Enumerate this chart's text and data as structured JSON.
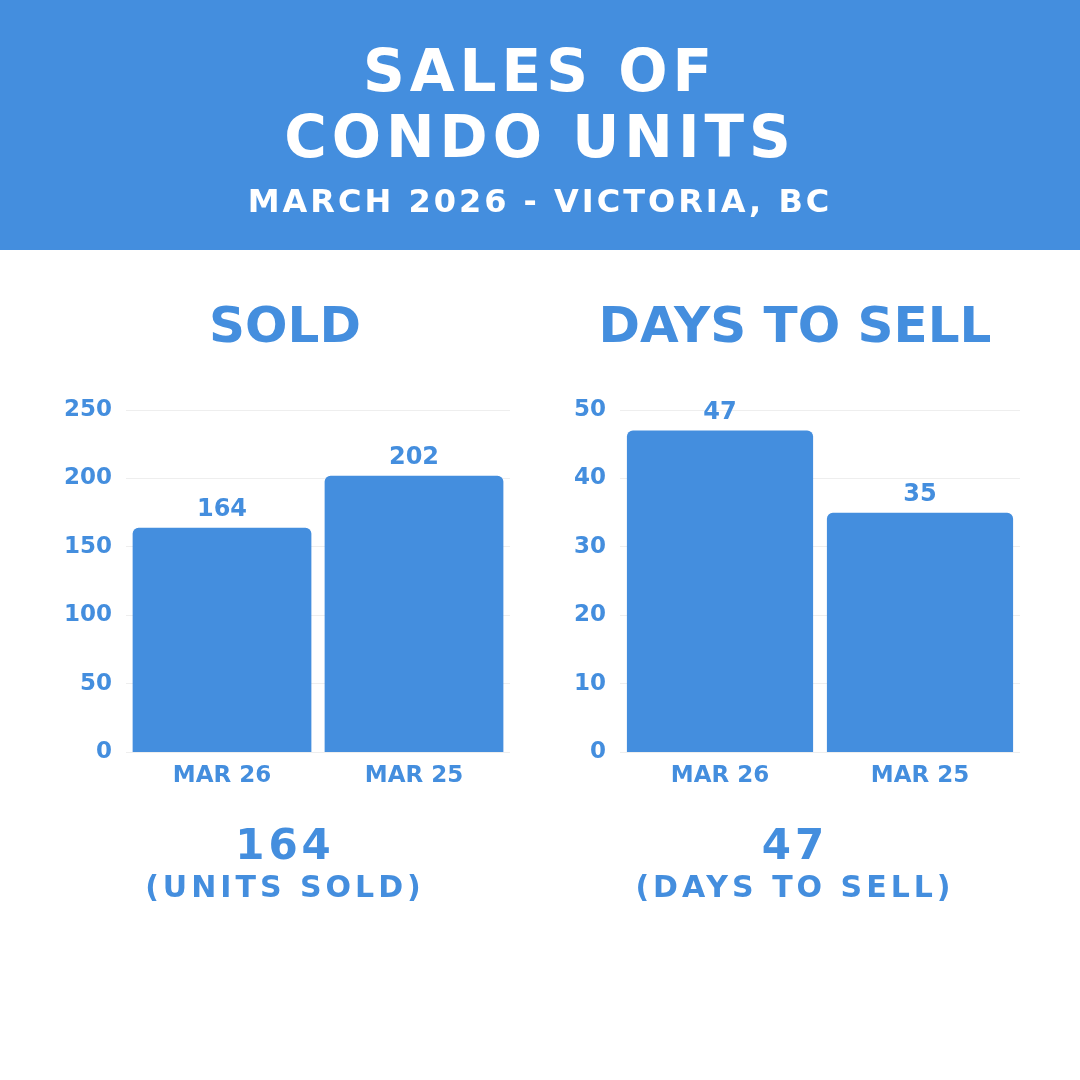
{
  "chart_data": [
    {
      "type": "other",
      "title": "SALES OF CONDO UNITS",
      "subtitle": "MARCH 2026 - VICTORIA, BC",
      "color": "#448ede"
    },
    {
      "type": "bar",
      "title": "SOLD",
      "categories": [
        "MAR 26",
        "MAR 25"
      ],
      "values": [
        164,
        202
      ],
      "color": "#448ede",
      "ylim": [
        0,
        250
      ],
      "yticks": [
        0,
        50,
        100,
        150,
        200,
        250
      ],
      "grid": "y",
      "data_labels": true,
      "legend": false,
      "annotations": [
        "164",
        "(UNITS SOLD)"
      ]
    },
    {
      "type": "bar",
      "title": "DAYS TO SELL",
      "categories": [
        "MAR 26",
        "MAR 25"
      ],
      "values": [
        47,
        35
      ],
      "color": "#448ede",
      "ylim": [
        0,
        50
      ],
      "yticks": [
        0,
        10,
        20,
        30,
        40,
        50
      ],
      "grid": "y",
      "data_labels": true,
      "legend": false,
      "annotations": [
        "47",
        "(DAYS TO SELL)"
      ]
    }
  ]
}
